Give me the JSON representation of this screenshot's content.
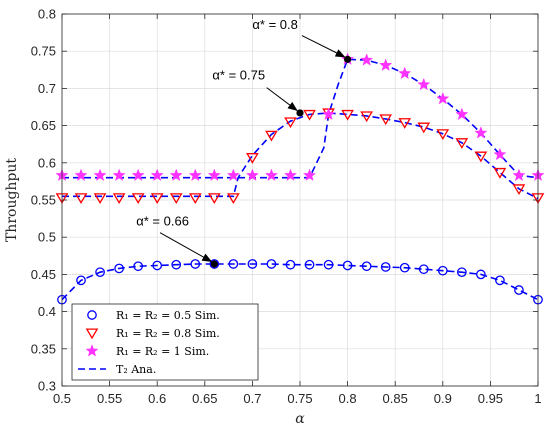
{
  "chart_data": {
    "type": "line",
    "xlabel": "α",
    "ylabel": "Throughput",
    "xlim": [
      0.5,
      1.0
    ],
    "ylim": [
      0.3,
      0.8
    ],
    "xticks": [
      "0.5",
      "0.55",
      "0.6",
      "0.65",
      "0.7",
      "0.75",
      "0.8",
      "0.85",
      "0.9",
      "0.95",
      "1"
    ],
    "yticks": [
      "0.3",
      "0.35",
      "0.4",
      "0.45",
      "0.5",
      "0.55",
      "0.6",
      "0.65",
      "0.7",
      "0.75",
      "0.8"
    ],
    "grid": true,
    "legend_position": "bottom-left",
    "x": [
      0.5,
      0.52,
      0.54,
      0.56,
      0.58,
      0.6,
      0.62,
      0.64,
      0.66,
      0.68,
      0.7,
      0.72,
      0.74,
      0.76,
      0.78,
      0.8,
      0.82,
      0.84,
      0.86,
      0.88,
      0.9,
      0.92,
      0.94,
      0.96,
      0.98,
      1.0
    ],
    "series": [
      {
        "name": "R₁ = R₂ = 0.5 Sim.",
        "marker": "circle",
        "color": "#0000ff",
        "values": [
          0.416,
          0.442,
          0.453,
          0.458,
          0.461,
          0.462,
          0.463,
          0.464,
          0.464,
          0.464,
          0.464,
          0.464,
          0.463,
          0.463,
          0.463,
          0.462,
          0.461,
          0.46,
          0.459,
          0.457,
          0.455,
          0.453,
          0.45,
          0.442,
          0.429,
          0.416
        ]
      },
      {
        "name": "R₁ = R₂ = 0.8 Sim.",
        "marker": "triangle-down",
        "color": "#ff0000",
        "values": [
          0.553,
          0.553,
          0.553,
          0.553,
          0.553,
          0.553,
          0.553,
          0.553,
          0.553,
          0.553,
          0.607,
          0.637,
          0.655,
          0.665,
          0.667,
          0.665,
          0.663,
          0.659,
          0.654,
          0.648,
          0.639,
          0.627,
          0.609,
          0.587,
          0.565,
          0.553
        ]
      },
      {
        "name": "R₁ = R₂ = 1 Sim.",
        "marker": "star",
        "color": "#ff33ff",
        "values": [
          0.583,
          0.583,
          0.583,
          0.583,
          0.583,
          0.583,
          0.583,
          0.583,
          0.583,
          0.583,
          0.583,
          0.583,
          0.583,
          0.583,
          0.665,
          0.739,
          0.738,
          0.731,
          0.72,
          0.705,
          0.686,
          0.665,
          0.64,
          0.611,
          0.583,
          0.583
        ]
      },
      {
        "name": "T₂ Ana.",
        "style": "dashed",
        "color": "#0000ff",
        "curves": [
          {
            "x": [
              0.5,
              0.52,
              0.54,
              0.56,
              0.58,
              0.6,
              0.62,
              0.64,
              0.66,
              0.68,
              0.7,
              0.72,
              0.74,
              0.76,
              0.78,
              0.8,
              0.82,
              0.84,
              0.86,
              0.88,
              0.9,
              0.92,
              0.94,
              0.96,
              0.98,
              1.0
            ],
            "y": [
              0.416,
              0.442,
              0.453,
              0.458,
              0.461,
              0.462,
              0.463,
              0.464,
              0.464,
              0.464,
              0.464,
              0.464,
              0.463,
              0.463,
              0.463,
              0.462,
              0.461,
              0.46,
              0.459,
              0.457,
              0.455,
              0.453,
              0.45,
              0.442,
              0.429,
              0.416
            ]
          },
          {
            "x": [
              0.5,
              0.68,
              0.685,
              0.7,
              0.72,
              0.74,
              0.76,
              0.78,
              0.8,
              0.82,
              0.84,
              0.86,
              0.88,
              0.9,
              0.92,
              0.94,
              0.96,
              0.98,
              1.0
            ],
            "y": [
              0.555,
              0.555,
              0.58,
              0.61,
              0.638,
              0.656,
              0.665,
              0.667,
              0.665,
              0.663,
              0.659,
              0.654,
              0.648,
              0.639,
              0.627,
              0.609,
              0.587,
              0.565,
              0.552
            ]
          },
          {
            "x": [
              0.5,
              0.76,
              0.775,
              0.78,
              0.79,
              0.8,
              0.82,
              0.84,
              0.86,
              0.88,
              0.9,
              0.92,
              0.94,
              0.96,
              0.98,
              1.0
            ],
            "y": [
              0.58,
              0.58,
              0.62,
              0.665,
              0.705,
              0.739,
              0.738,
              0.731,
              0.72,
              0.705,
              0.686,
              0.665,
              0.64,
              0.611,
              0.583,
              0.58
            ]
          }
        ]
      }
    ],
    "annotations": [
      {
        "text": "α* = 0.66",
        "x": 0.66,
        "y": 0.464
      },
      {
        "text": "α* = 0.75",
        "x": 0.75,
        "y": 0.667
      },
      {
        "text": "α* = 0.8",
        "x": 0.8,
        "y": 0.739
      }
    ]
  }
}
